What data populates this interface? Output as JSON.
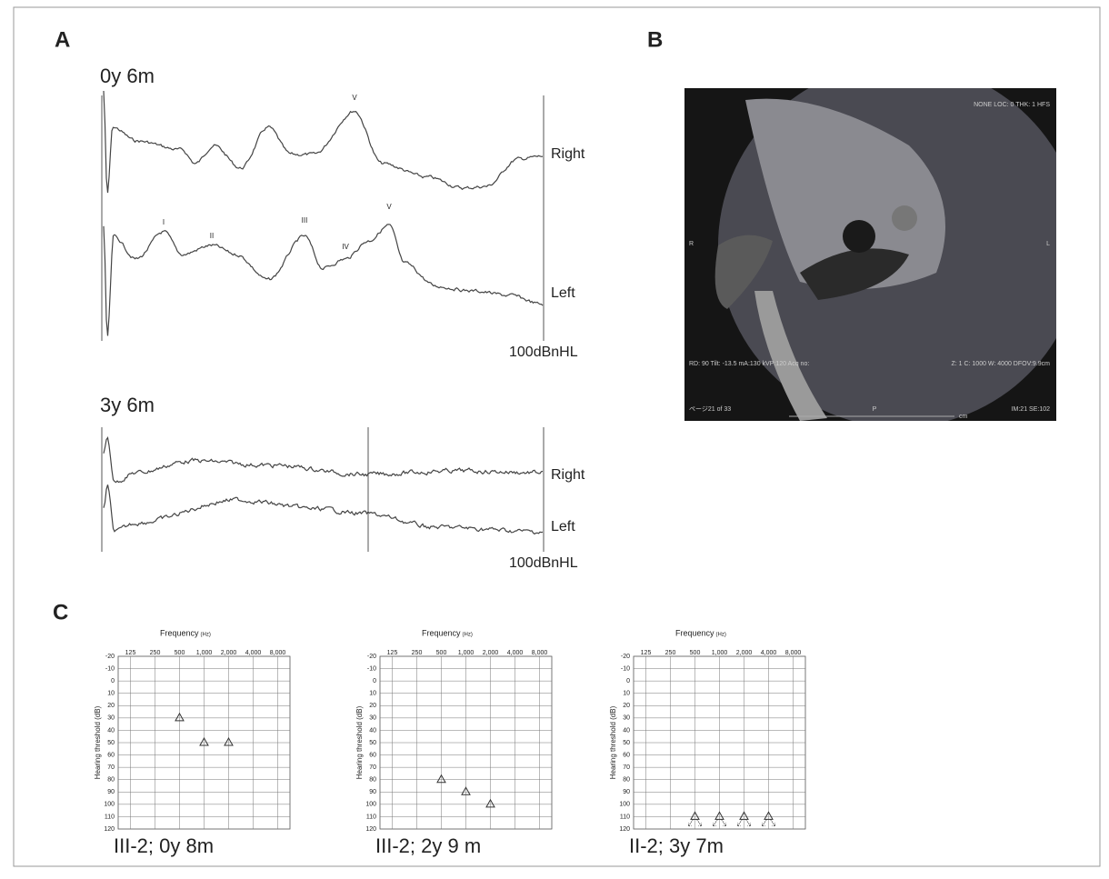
{
  "panel_a": {
    "label": "A",
    "recordings": [
      {
        "age": "0y 6m",
        "right": "Right",
        "left": "Left",
        "level": "100dBnHL",
        "right_peaks": [
          "V"
        ],
        "left_peaks": [
          "I",
          "II",
          "III",
          "IV",
          "V"
        ]
      },
      {
        "age": "3y 6m",
        "right": "Right",
        "left": "Left",
        "level": "100dBnHL"
      }
    ]
  },
  "panel_b": {
    "label": "B",
    "ct_text": {
      "top_right": "NONE LOC: 0 THK: 1 HFS",
      "left": "R",
      "right": "L",
      "bottom_left": "RD: 90 Tilt: -13.5 mA:130 kVP:120 Acq no:",
      "bottom_right": "Z: 1 C: 1000 W: 4000 DFOV:9.9cm",
      "page": "ページ21 of 33",
      "series": "IM:21 SE:102",
      "posterior": "P",
      "unit": "cm"
    }
  },
  "panel_c": {
    "label": "C"
  },
  "chart_data": [
    {
      "type": "audiogram",
      "title": "III-2; 0y 8m",
      "xlabel": "Frequency",
      "xunit": "(Hz)",
      "ylabel": "Hearing threshold (dB)",
      "categories": [
        "125",
        "250",
        "500",
        "1,000",
        "2,000",
        "4,000",
        "8,000"
      ],
      "values": [
        null,
        null,
        30,
        50,
        50,
        null,
        null
      ],
      "marker": "triangle",
      "color": "#333333",
      "ylim": [
        -20,
        120
      ],
      "inverted": true,
      "yticks": [
        -20,
        -10,
        0,
        10,
        20,
        30,
        40,
        50,
        60,
        70,
        80,
        90,
        100,
        110,
        120
      ],
      "grid": true
    },
    {
      "type": "audiogram",
      "title": "III-2; 2y 9 m",
      "xlabel": "Frequency",
      "xunit": "(Hz)",
      "ylabel": "Hearing threshold (dB)",
      "categories": [
        "125",
        "250",
        "500",
        "1,000",
        "2,000",
        "4,000",
        "8,000"
      ],
      "values": [
        null,
        null,
        80,
        90,
        100,
        null,
        null
      ],
      "marker": "triangle",
      "color": "#333333",
      "ylim": [
        -20,
        120
      ],
      "inverted": true,
      "yticks": [
        -20,
        -10,
        0,
        10,
        20,
        30,
        40,
        50,
        60,
        70,
        80,
        90,
        100,
        110,
        120
      ],
      "grid": true
    },
    {
      "type": "audiogram",
      "title": "II-2; 3y 7m",
      "xlabel": "Frequency",
      "xunit": "(Hz)",
      "ylabel": "Hearing threshold (dB)",
      "categories": [
        "125",
        "250",
        "500",
        "1,000",
        "2,000",
        "4,000",
        "8,000"
      ],
      "values": [
        null,
        null,
        110,
        110,
        110,
        110,
        null
      ],
      "marker": "triangle",
      "no_response": true,
      "color": "#333333",
      "ylim": [
        -20,
        120
      ],
      "inverted": true,
      "yticks": [
        -20,
        -10,
        0,
        10,
        20,
        30,
        40,
        50,
        60,
        70,
        80,
        90,
        100,
        110,
        120
      ],
      "grid": true
    }
  ]
}
